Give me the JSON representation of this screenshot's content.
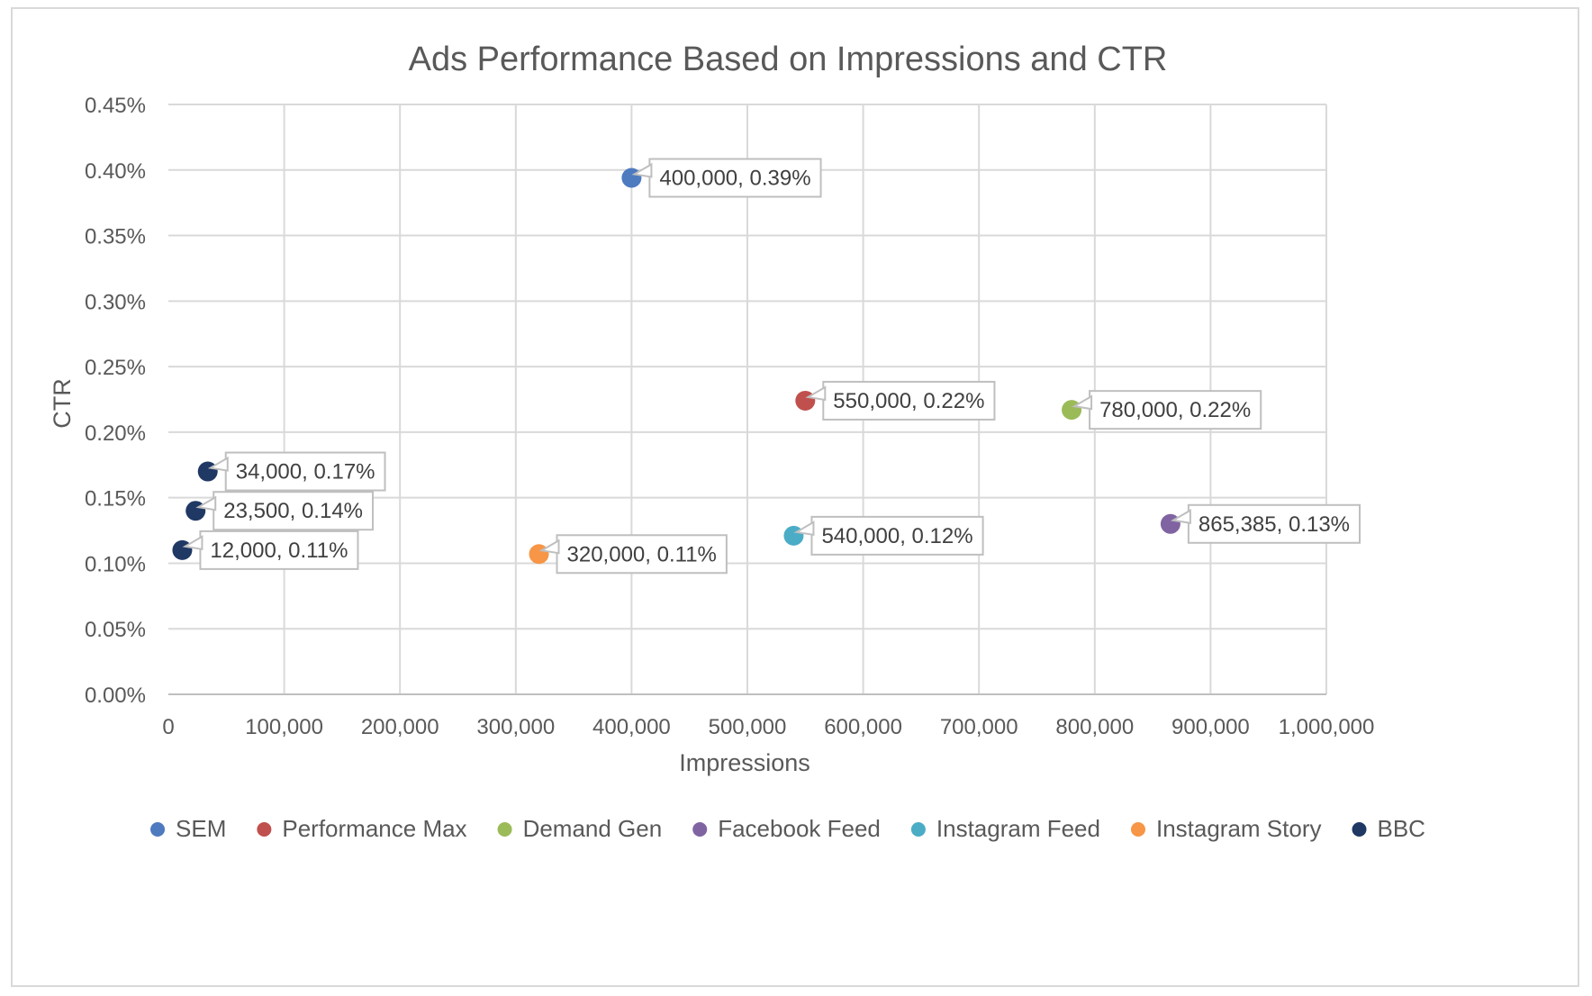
{
  "chart_data": {
    "type": "scatter",
    "title": "Ads Performance Based on Impressions and CTR",
    "xlabel": "Impressions",
    "ylabel": "CTR",
    "xlim": [
      0,
      1000000
    ],
    "ylim": [
      0,
      0.45
    ],
    "x_ticks": [
      "0",
      "100,000",
      "200,000",
      "300,000",
      "400,000",
      "500,000",
      "600,000",
      "700,000",
      "800,000",
      "900,000",
      "1,000,000"
    ],
    "y_ticks": [
      "0.00%",
      "0.05%",
      "0.10%",
      "0.15%",
      "0.20%",
      "0.25%",
      "0.30%",
      "0.35%",
      "0.40%",
      "0.45%"
    ],
    "grid": true,
    "legend_position": "bottom",
    "series": [
      {
        "name": "SEM",
        "color": "#4e7ac0",
        "points": [
          {
            "x": 400000,
            "y": 0.394,
            "label": "400,000, 0.39%"
          }
        ]
      },
      {
        "name": "Performance Max",
        "color": "#c0504d",
        "points": [
          {
            "x": 550000,
            "y": 0.224,
            "label": "550,000, 0.22%"
          }
        ]
      },
      {
        "name": "Demand Gen",
        "color": "#9bbb59",
        "points": [
          {
            "x": 780000,
            "y": 0.217,
            "label": "780,000, 0.22%"
          }
        ]
      },
      {
        "name": "Facebook Feed",
        "color": "#8064a2",
        "points": [
          {
            "x": 865385,
            "y": 0.13,
            "label": "865,385, 0.13%"
          }
        ]
      },
      {
        "name": "Instagram Feed",
        "color": "#4bacc6",
        "points": [
          {
            "x": 540000,
            "y": 0.121,
            "label": "540,000, 0.12%"
          }
        ]
      },
      {
        "name": "Instagram Story",
        "color": "#f79646",
        "points": [
          {
            "x": 320000,
            "y": 0.107,
            "label": "320,000, 0.11%"
          }
        ]
      },
      {
        "name": "BBC",
        "color": "#1f3864",
        "points": [
          {
            "x": 34000,
            "y": 0.17,
            "label": "34,000, 0.17%"
          },
          {
            "x": 23500,
            "y": 0.14,
            "label": "23,500, 0.14%"
          },
          {
            "x": 12000,
            "y": 0.11,
            "label": "12,000, 0.11%"
          }
        ]
      }
    ]
  }
}
